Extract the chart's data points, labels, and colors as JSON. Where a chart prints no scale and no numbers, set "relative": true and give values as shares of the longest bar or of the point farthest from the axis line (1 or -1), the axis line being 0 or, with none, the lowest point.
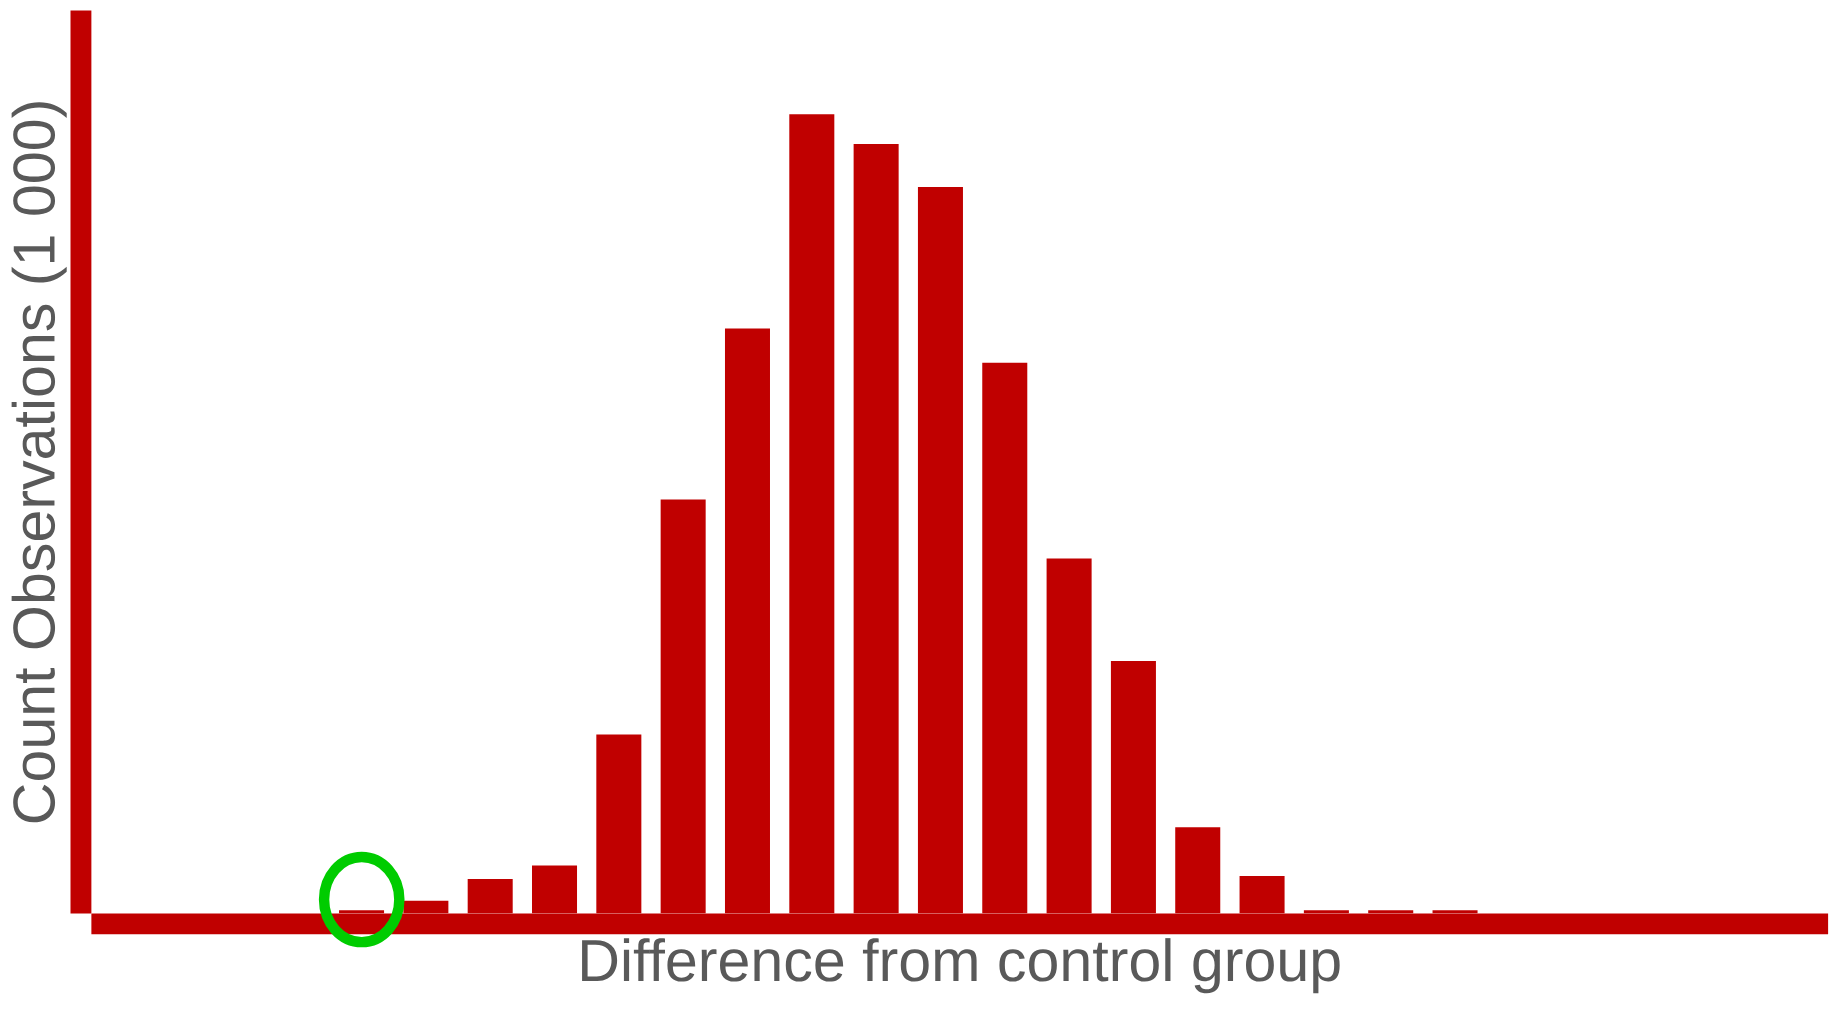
{
  "chart_data": {
    "type": "bar",
    "relative": true,
    "xlabel": "Difference from control group",
    "ylabel": "Count Observations (1 000)",
    "color": "#c00000",
    "categories": [
      null,
      null,
      null,
      null,
      null,
      null,
      null,
      null,
      null,
      null,
      null,
      null,
      null,
      null,
      null,
      null,
      null,
      null
    ],
    "values": [
      0.004,
      0.016,
      0.043,
      0.06,
      0.224,
      0.518,
      0.732,
      1,
      0.963,
      0.909,
      0.689,
      0.444,
      0.316,
      0.108,
      0.047,
      0.004,
      0.004,
      0.004
    ],
    "marker": "none"
  }
}
